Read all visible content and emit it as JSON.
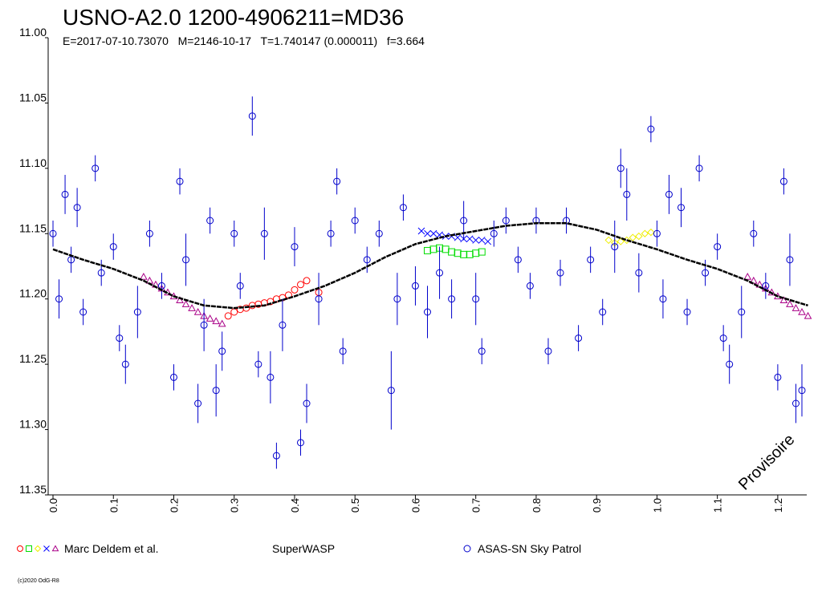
{
  "chart_data": {
    "type": "scatter",
    "title": "USNO-A2.0 1200-4906211=MD36",
    "subtitle": "E=2017-07-10.73070   M=2146-10-17   T=1.740147 (0.000011)   f=3.664",
    "annotation": "Provisoire",
    "footer": "(c)2020 OdG-R8",
    "xlim": [
      -0.008,
      1.248
    ],
    "xticks": [
      {
        "value": 0,
        "label": "0.0"
      },
      0.1,
      0.2,
      0.3,
      0.4,
      0.5,
      0.6,
      0.7,
      0.8,
      0.9,
      {
        "value": 1,
        "label": "1.0"
      },
      1.1,
      1.2
    ],
    "ylim": [
      11.35,
      11.0
    ],
    "yticks": [
      {
        "value": 11,
        "label": "11.00"
      },
      11.05,
      {
        "value": 11.1,
        "label": "11.10"
      },
      11.15,
      {
        "value": 11.2,
        "label": "11.20"
      },
      11.25,
      {
        "value": 11.3,
        "label": "11.30"
      },
      11.35
    ],
    "series": [
      {
        "name": "Marc Deldem et al.",
        "groups": [
          {
            "color": "#ff0000",
            "marker": "circle",
            "x": [
              0.29,
              0.3,
              0.31,
              0.32,
              0.33,
              0.34,
              0.35,
              0.36,
              0.37,
              0.38,
              0.39,
              0.4,
              0.41,
              0.42,
              0.44
            ],
            "values": [
              11.213,
              11.21,
              11.208,
              11.207,
              11.205,
              11.204,
              11.203,
              11.202,
              11.2,
              11.199,
              11.197,
              11.193,
              11.189,
              11.186,
              11.195
            ]
          },
          {
            "color": "#00dd00",
            "marker": "square",
            "x": [
              0.62,
              0.63,
              0.64,
              0.65,
              0.66,
              0.67,
              0.68,
              0.69,
              0.7,
              0.71
            ],
            "values": [
              11.163,
              11.162,
              11.161,
              11.162,
              11.164,
              11.165,
              11.166,
              11.166,
              11.165,
              11.164
            ]
          },
          {
            "color": "#eeee00",
            "marker": "diamond",
            "x": [
              0.92,
              0.93,
              0.94,
              0.95,
              0.96,
              0.97,
              0.98,
              0.99
            ],
            "values": [
              11.155,
              11.157,
              11.156,
              11.155,
              11.153,
              11.152,
              11.15,
              11.149
            ]
          },
          {
            "color": "#0000ff",
            "marker": "cross",
            "x": [
              0.61,
              0.62,
              0.63,
              0.64,
              0.65,
              0.66,
              0.67,
              0.68,
              0.69,
              0.7,
              0.71,
              0.72
            ],
            "values": [
              11.148,
              11.15,
              11.15,
              11.151,
              11.152,
              11.152,
              11.153,
              11.154,
              11.154,
              11.155,
              11.155,
              11.156
            ]
          },
          {
            "color": "#aa0088",
            "marker": "triangle",
            "x": [
              0.15,
              0.16,
              0.17,
              0.18,
              0.19,
              0.2,
              0.21,
              0.22,
              0.23,
              0.24,
              0.25,
              0.26,
              0.27,
              0.28,
              1.15,
              1.16,
              1.17,
              1.18,
              1.19,
              1.2,
              1.21,
              1.22,
              1.23,
              1.24,
              1.25
            ],
            "values": [
              11.183,
              11.186,
              11.189,
              11.192,
              11.195,
              11.198,
              11.201,
              11.204,
              11.207,
              11.21,
              11.213,
              11.215,
              11.217,
              11.219,
              11.183,
              11.186,
              11.189,
              11.192,
              11.195,
              11.198,
              11.201,
              11.204,
              11.207,
              11.21,
              11.213
            ]
          }
        ]
      },
      {
        "name": "SuperWASP",
        "x": [],
        "values": []
      },
      {
        "name": "ASAS-SN Sky Patrol",
        "color": "#0000cc",
        "marker": "circle",
        "x": [
          0.0,
          0.01,
          0.02,
          0.03,
          0.04,
          0.05,
          0.07,
          0.08,
          0.1,
          0.11,
          0.12,
          0.14,
          0.16,
          0.18,
          0.2,
          0.21,
          0.22,
          0.24,
          0.25,
          0.26,
          0.27,
          0.28,
          0.3,
          0.31,
          0.33,
          0.34,
          0.35,
          0.36,
          0.37,
          0.38,
          0.4,
          0.41,
          0.42,
          0.44,
          0.46,
          0.47,
          0.48,
          0.5,
          0.52,
          0.54,
          0.56,
          0.57,
          0.58,
          0.6,
          0.62,
          0.64,
          0.66,
          0.68,
          0.7,
          0.71,
          0.73,
          0.75,
          0.77,
          0.79,
          0.8,
          0.82,
          0.84,
          0.85,
          0.87,
          0.89,
          0.91,
          0.93,
          0.94,
          0.95,
          0.97,
          0.99,
          1.0,
          1.01,
          1.02,
          1.04,
          1.05,
          1.07,
          1.08,
          1.1,
          1.11,
          1.12,
          1.14,
          1.16,
          1.18,
          1.2,
          1.21,
          1.22,
          1.23,
          1.24
        ],
        "values": [
          11.15,
          11.2,
          11.12,
          11.17,
          11.13,
          11.21,
          11.1,
          11.18,
          11.16,
          11.23,
          11.25,
          11.21,
          11.15,
          11.19,
          11.26,
          11.11,
          11.17,
          11.28,
          11.22,
          11.14,
          11.27,
          11.24,
          11.15,
          11.19,
          11.06,
          11.25,
          11.15,
          11.26,
          11.32,
          11.22,
          11.16,
          11.31,
          11.28,
          11.2,
          11.15,
          11.11,
          11.24,
          11.14,
          11.17,
          11.15,
          11.27,
          11.2,
          11.13,
          11.19,
          11.21,
          11.18,
          11.2,
          11.14,
          11.2,
          11.24,
          11.15,
          11.14,
          11.17,
          11.19,
          11.14,
          11.24,
          11.18,
          11.14,
          11.23,
          11.17,
          11.21,
          11.16,
          11.1,
          11.12,
          11.18,
          11.07,
          11.15,
          11.2,
          11.12,
          11.13,
          11.21,
          11.1,
          11.18,
          11.16,
          11.23,
          11.25,
          11.21,
          11.15,
          11.19,
          11.26,
          11.11,
          11.17,
          11.28,
          11.27
        ],
        "errors": [
          0.01,
          0.015,
          0.015,
          0.01,
          0.015,
          0.01,
          0.01,
          0.01,
          0.01,
          0.01,
          0.015,
          0.02,
          0.01,
          0.01,
          0.01,
          0.01,
          0.02,
          0.015,
          0.02,
          0.01,
          0.02,
          0.015,
          0.01,
          0.01,
          0.015,
          0.01,
          0.02,
          0.02,
          0.01,
          0.02,
          0.015,
          0.01,
          0.015,
          0.02,
          0.01,
          0.01,
          0.01,
          0.01,
          0.01,
          0.01,
          0.03,
          0.02,
          0.01,
          0.015,
          0.02,
          0.02,
          0.015,
          0.015,
          0.02,
          0.01,
          0.01,
          0.01,
          0.01,
          0.01,
          0.01,
          0.01,
          0.01,
          0.01,
          0.01,
          0.01,
          0.01,
          0.02,
          0.015,
          0.02,
          0.015,
          0.01,
          0.01,
          0.015,
          0.015,
          0.015,
          0.01,
          0.01,
          0.01,
          0.01,
          0.01,
          0.015,
          0.02,
          0.01,
          0.01,
          0.01,
          0.01,
          0.02,
          0.015,
          0.02
        ]
      }
    ],
    "fit": {
      "color": "#000000",
      "x": [
        0,
        0.05,
        0.1,
        0.15,
        0.2,
        0.25,
        0.3,
        0.35,
        0.4,
        0.45,
        0.5,
        0.55,
        0.6,
        0.65,
        0.7,
        0.75,
        0.8,
        0.85,
        0.9,
        0.95,
        1.0,
        1.05,
        1.1,
        1.15,
        1.2,
        1.25
      ],
      "values": [
        11.162,
        11.17,
        11.177,
        11.186,
        11.198,
        11.205,
        11.207,
        11.205,
        11.198,
        11.19,
        11.18,
        11.168,
        11.158,
        11.152,
        11.148,
        11.144,
        11.142,
        11.142,
        11.147,
        11.155,
        11.162,
        11.17,
        11.177,
        11.186,
        11.198,
        11.205
      ]
    }
  }
}
